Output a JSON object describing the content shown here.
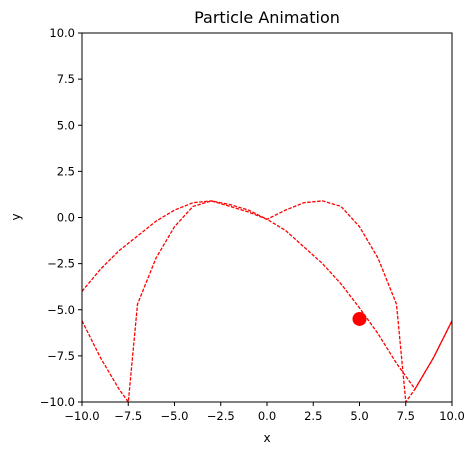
{
  "chart_data": {
    "type": "line",
    "title": "Particle Animation",
    "xlabel": "x",
    "ylabel": "y",
    "xlim": [
      -10,
      10
    ],
    "ylim": [
      -10,
      10
    ],
    "grid": false,
    "x_ticks": [
      "−10.0",
      "−7.5",
      "−5.0",
      "−2.5",
      "0.0",
      "2.5",
      "5.0",
      "7.5",
      "10.0"
    ],
    "y_ticks": [
      "−10.0",
      "−7.5",
      "−5.0",
      "−2.5",
      "0.0",
      "2.5",
      "5.0",
      "7.5",
      "10.0"
    ],
    "series": [
      {
        "style": "dashed",
        "color": "#ff0000",
        "x": [
          -10.0,
          -9.0,
          -8.0,
          -7.5,
          -7.0,
          -6.0,
          -5.0,
          -4.0,
          -3.0,
          -2.0,
          -1.0,
          0.0,
          1.0,
          2.0,
          3.0,
          4.0,
          5.0,
          6.0,
          7.0,
          8.0,
          9.0,
          10.0
        ],
        "y": [
          -5.6,
          -7.6,
          -9.3,
          -10.0,
          -4.7,
          -2.2,
          -0.5,
          0.6,
          0.9,
          0.6,
          0.3,
          -0.1,
          -0.7,
          -1.6,
          -2.5,
          -3.6,
          -4.9,
          -6.3,
          -7.9,
          -9.3,
          -7.6,
          -5.6
        ]
      },
      {
        "style": "dashed",
        "color": "#ff0000",
        "x": [
          -10.0,
          -9.0,
          -8.0,
          -7.0,
          -6.0,
          -5.0,
          -4.0,
          -3.0,
          -2.0,
          -1.0,
          0.0,
          1.0,
          2.0,
          3.0,
          4.0,
          5.0,
          6.0,
          7.0,
          7.5,
          8.0,
          9.0,
          10.0
        ],
        "y": [
          -4.0,
          -2.8,
          -1.8,
          -1.0,
          -0.2,
          0.4,
          0.8,
          0.9,
          0.7,
          0.4,
          -0.1,
          0.4,
          0.8,
          0.9,
          0.6,
          -0.5,
          -2.2,
          -4.7,
          -10.0,
          -9.3,
          -7.6,
          -5.6
        ]
      }
    ],
    "marker": {
      "x": 5.0,
      "y": -5.5,
      "color": "#ff0000"
    }
  }
}
